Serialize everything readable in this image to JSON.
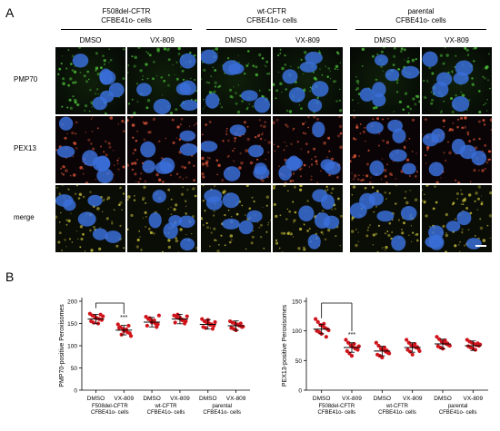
{
  "panel_a": {
    "letter": "A",
    "groups": [
      {
        "title_line1": "F508del-CFTR",
        "title_line2": "CFBE41o- cells"
      },
      {
        "title_line1": "wt-CFTR",
        "title_line2": "CFBE41o- cells"
      },
      {
        "title_line1": "parental",
        "title_line2": "CFBE41o- cells"
      }
    ],
    "columns": [
      "DMSO",
      "VX-809",
      "DMSO",
      "VX-809",
      "DMSO",
      "VX-809"
    ],
    "rows": [
      "PMP70",
      "PEX13",
      "merge"
    ],
    "colors": {
      "nuclei": "#3a6fd8",
      "pmp70": "#4fc23a",
      "pex13": "#e0583a",
      "merge": "#c8c23a"
    }
  },
  "panel_b": {
    "letter": "B",
    "chart_data": [
      {
        "type": "scatter",
        "ylabel": "PMP70-positive Peroxisomes",
        "ylim": [
          0,
          200
        ],
        "yticks": [
          0,
          50,
          100,
          150,
          200
        ],
        "categories": [
          "DMSO",
          "VX-809",
          "DMSO",
          "VX-809",
          "DMSO",
          "VX-809"
        ],
        "group_labels": [
          {
            "line1": "F508del-CFTR",
            "line2": "CFBE41o- cells"
          },
          {
            "line1": "wt-CFTR",
            "line2": "CFBE41o- cells"
          },
          {
            "line1": "parental",
            "line2": "CFBE41o- cells"
          }
        ],
        "means": [
          160,
          135,
          153,
          160,
          148,
          145
        ],
        "points": [
          [
            172,
            168,
            165,
            162,
            160,
            158,
            155,
            152,
            163,
            150,
            170,
            166
          ],
          [
            148,
            142,
            138,
            135,
            130,
            128,
            140,
            125,
            133,
            137,
            145,
            122
          ],
          [
            165,
            160,
            158,
            155,
            150,
            148,
            145,
            162,
            152,
            157,
            142,
            168
          ],
          [
            168,
            165,
            162,
            160,
            158,
            155,
            152,
            170,
            163,
            157,
            150,
            166
          ],
          [
            160,
            155,
            152,
            150,
            148,
            145,
            142,
            140,
            158,
            147,
            138,
            153
          ],
          [
            155,
            152,
            150,
            148,
            145,
            142,
            140,
            138,
            135,
            147,
            150,
            143
          ]
        ],
        "significance": {
          "from": 0,
          "to": 1,
          "label": "***"
        }
      },
      {
        "type": "scatter",
        "ylabel": "PEX13-positive Peroxisomes",
        "ylim": [
          0,
          150
        ],
        "yticks": [
          0,
          50,
          100,
          150
        ],
        "categories": [
          "DMSO",
          "VX-809",
          "DMSO",
          "VX-809",
          "DMSO",
          "VX-809"
        ],
        "group_labels": [
          {
            "line1": "F508del-CFTR",
            "line2": "CFBE41o- cells"
          },
          {
            "line1": "wt-CFTR",
            "line2": "CFBE41o- cells"
          },
          {
            "line1": "parental",
            "line2": "CFBE41o- cells"
          }
        ],
        "means": [
          103,
          72,
          66,
          72,
          78,
          75
        ],
        "points": [
          [
            120,
            115,
            110,
            108,
            105,
            103,
            100,
            98,
            95,
            112,
            90,
            101
          ],
          [
            85,
            80,
            76,
            73,
            70,
            68,
            66,
            62,
            58,
            78,
            71,
            74
          ],
          [
            80,
            75,
            70,
            68,
            65,
            63,
            60,
            58,
            55,
            72,
            67,
            62
          ],
          [
            85,
            80,
            76,
            74,
            72,
            70,
            68,
            65,
            60,
            78,
            73,
            66
          ],
          [
            90,
            86,
            82,
            80,
            78,
            76,
            74,
            72,
            70,
            84,
            79,
            75
          ],
          [
            85,
            82,
            80,
            78,
            76,
            75,
            74,
            72,
            70,
            68,
            79,
            77
          ]
        ],
        "significance": {
          "from": 0,
          "to": 1,
          "label": "***"
        }
      }
    ]
  }
}
